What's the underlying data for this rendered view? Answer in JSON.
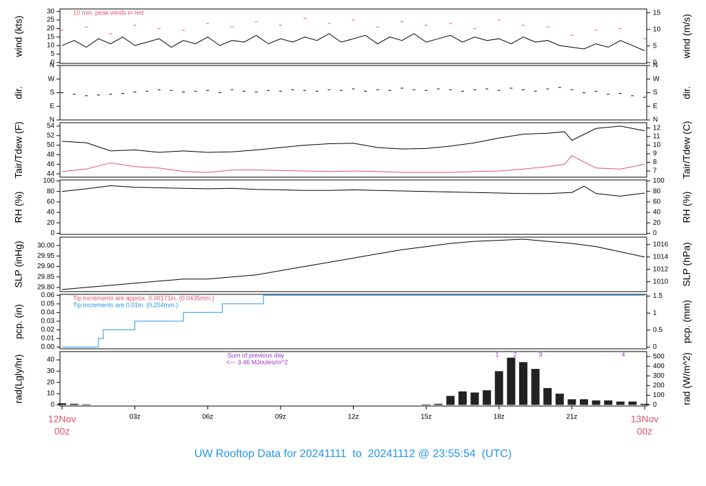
{
  "chart_data": [
    {
      "type": "line",
      "ylabel": "wind (kts)",
      "y2label": "wind (m/s)",
      "ylim": [
        -0.5,
        31.5
      ],
      "yticks": [
        0,
        5,
        10,
        15,
        20,
        25,
        30
      ],
      "y2lim": [
        -0.26,
        16.2
      ],
      "y2ticks": [
        0,
        5,
        10,
        15
      ],
      "annotations": [
        {
          "text": "10 min. peak winds in red",
          "color": "#df536b"
        }
      ],
      "series": [
        {
          "name": "wind",
          "color": "#000000",
          "x": [
            0,
            0.5,
            1,
            1.5,
            2,
            2.5,
            3,
            3.5,
            4,
            4.5,
            5,
            5.5,
            6,
            6.5,
            7,
            7.5,
            8,
            8.5,
            9,
            9.5,
            10,
            10.5,
            11,
            11.5,
            12,
            12.5,
            13,
            13.5,
            14,
            14.5,
            15,
            15.5,
            16,
            16.5,
            17,
            17.5,
            18,
            18.5,
            19,
            19.5,
            20,
            20.5,
            21,
            21.5,
            22,
            22.5,
            23,
            23.5,
            24
          ],
          "values": [
            10,
            13,
            9,
            14,
            11,
            15,
            10,
            12,
            14,
            9,
            13,
            11,
            15,
            10,
            13,
            12,
            16,
            11,
            14,
            12,
            15,
            13,
            17,
            12,
            14,
            16,
            11,
            15,
            13,
            17,
            12,
            14,
            16,
            12,
            15,
            13,
            14,
            11,
            15,
            12,
            13,
            10,
            9,
            8,
            11,
            9,
            13,
            10,
            7
          ]
        },
        {
          "name": "peak",
          "type": "scatter",
          "color": "#df536b",
          "x": [
            0,
            1,
            2,
            3,
            4,
            5,
            6,
            7,
            8,
            9,
            10,
            11,
            12,
            13,
            14,
            15,
            16,
            17,
            18,
            19,
            20,
            21,
            22,
            23,
            24
          ],
          "values": [
            19,
            21,
            17,
            22,
            20,
            19,
            23,
            21,
            24,
            22,
            26,
            23,
            25,
            21,
            24,
            22,
            23,
            20,
            25,
            22,
            21,
            16,
            19,
            20,
            14
          ]
        }
      ]
    },
    {
      "type": "scatter",
      "ylabel": "dir.",
      "y2label": "dir.",
      "ylim": [
        0,
        360
      ],
      "y2lim": [
        0,
        360
      ],
      "yticks": [
        {
          "value": 0,
          "label": "N"
        },
        {
          "value": 90,
          "label": "E"
        },
        {
          "value": 180,
          "label": "S"
        },
        {
          "value": 270,
          "label": "W"
        },
        {
          "value": 360,
          "label": "N"
        }
      ],
      "y2ticks": [
        {
          "value": 0,
          "label": "N"
        },
        {
          "value": 90,
          "label": "E"
        },
        {
          "value": 180,
          "label": "S"
        },
        {
          "value": 270,
          "label": "W"
        },
        {
          "value": 360,
          "label": "N"
        }
      ],
      "series": [
        {
          "name": "dir",
          "color": "#000000",
          "x": [
            0,
            0.5,
            1,
            1.5,
            2,
            2.5,
            3,
            3.5,
            4,
            4.5,
            5,
            5.5,
            6,
            6.5,
            7,
            7.5,
            8,
            8.5,
            9,
            9.5,
            10,
            10.5,
            11,
            11.5,
            12,
            12.5,
            13,
            13.5,
            14,
            14.5,
            15,
            15.5,
            16,
            16.5,
            17,
            17.5,
            18,
            18.5,
            19,
            19.5,
            20,
            20.5,
            21,
            21.5,
            22,
            22.5,
            23,
            23.5,
            24
          ],
          "values": [
            180,
            170,
            160,
            165,
            170,
            175,
            185,
            190,
            200,
            195,
            185,
            190,
            195,
            180,
            200,
            190,
            185,
            195,
            190,
            200,
            195,
            190,
            200,
            195,
            205,
            190,
            200,
            195,
            210,
            200,
            195,
            205,
            200,
            190,
            200,
            205,
            195,
            210,
            200,
            190,
            205,
            215,
            200,
            180,
            190,
            170,
            175,
            160,
            150
          ]
        }
      ]
    },
    {
      "type": "line",
      "ylabel": "Tair/Tdew (F)",
      "y2label": "Tair/Tdew (C)",
      "ylim": [
        43.3,
        54.7
      ],
      "yticks": [
        44,
        46,
        48,
        50,
        52,
        54
      ],
      "y2lim": [
        6.28,
        12.61
      ],
      "y2ticks": [
        7,
        8,
        9,
        10,
        11,
        12
      ],
      "series": [
        {
          "name": "Tair",
          "color": "#000000",
          "x": [
            0,
            1,
            2,
            3,
            4,
            5,
            6,
            7,
            8,
            9,
            10,
            11,
            12,
            13,
            14,
            15,
            16,
            17,
            18,
            19,
            20,
            20.7,
            21,
            22,
            23,
            24
          ],
          "values": [
            50.8,
            50.5,
            48.8,
            49,
            48.5,
            48.8,
            48.5,
            48.6,
            49,
            49.5,
            50,
            50.3,
            50.4,
            49.5,
            49.2,
            49.3,
            49.8,
            50.5,
            51.5,
            52.3,
            52.5,
            52.8,
            51,
            53.5,
            54,
            53
          ]
        },
        {
          "name": "Tdew",
          "color": "#df536b",
          "x": [
            0,
            1,
            2,
            3,
            4,
            5,
            6,
            7,
            8,
            9,
            10,
            11,
            12,
            13,
            14,
            15,
            16,
            17,
            18,
            19,
            20,
            20.7,
            21,
            22,
            23,
            24
          ],
          "values": [
            44.5,
            45,
            46.3,
            45.5,
            45.2,
            44.5,
            44.3,
            44.8,
            44.8,
            44.7,
            44.6,
            44.5,
            44.6,
            44.5,
            44.3,
            44.3,
            44.3,
            44.5,
            44.6,
            45,
            45.5,
            46,
            47.8,
            45.2,
            45,
            46
          ]
        }
      ]
    },
    {
      "type": "line",
      "ylabel": "RH (%)",
      "y2label": "RH (%)",
      "ylim": [
        -2,
        102
      ],
      "yticks": [
        0,
        20,
        40,
        60,
        80,
        100
      ],
      "y2lim": [
        -2,
        102
      ],
      "y2ticks": [
        0,
        20,
        40,
        60,
        80,
        100
      ],
      "series": [
        {
          "name": "RH",
          "color": "#000000",
          "x": [
            0,
            1,
            2,
            3,
            4,
            5,
            6,
            7,
            8,
            9,
            10,
            11,
            12,
            13,
            14,
            15,
            16,
            17,
            18,
            19,
            20,
            21,
            21.5,
            22,
            23,
            24
          ],
          "values": [
            80,
            85,
            91,
            88,
            87,
            86,
            85,
            86,
            84,
            83,
            82,
            82,
            83,
            82,
            81,
            80,
            79,
            78,
            77,
            76,
            76,
            78,
            90,
            76,
            71,
            77
          ]
        }
      ]
    },
    {
      "type": "line",
      "ylabel": "SLP (inHg)",
      "y2label": "SLP (hPa)",
      "ylim": [
        29.78,
        30.04
      ],
      "y2lim": [
        1008.4,
        1017.2
      ],
      "yticks": [
        {
          "value": 29.8,
          "label": "29.80"
        },
        {
          "value": 29.85,
          "label": "29.85"
        },
        {
          "value": 29.9,
          "label": "29.90"
        },
        {
          "value": 29.95,
          "label": "29.95"
        },
        {
          "value": 30,
          "label": "30.00"
        }
      ],
      "y2ticks": [
        1010,
        1012,
        1014,
        1016
      ],
      "series": [
        {
          "name": "SLP",
          "color": "#000000",
          "x": [
            0,
            1,
            2,
            3,
            4,
            5,
            6,
            7,
            8,
            9,
            10,
            11,
            12,
            13,
            14,
            15,
            16,
            17,
            18,
            19,
            20,
            21,
            22,
            23,
            24
          ],
          "values": [
            29.79,
            29.8,
            29.81,
            29.82,
            29.83,
            29.84,
            29.84,
            29.85,
            29.86,
            29.88,
            29.9,
            29.92,
            29.94,
            29.96,
            29.98,
            29.995,
            30.01,
            30.02,
            30.025,
            30.03,
            30.02,
            30.01,
            29.995,
            29.97,
            29.945
          ]
        }
      ]
    },
    {
      "type": "step",
      "ylabel": "pcp. (in)",
      "y2label": "pcp. (mm)",
      "ylim": [
        -0.002,
        0.061
      ],
      "y2lim": [
        -0.05,
        1.55
      ],
      "yticks": [
        {
          "value": 0,
          "label": "0.00"
        },
        {
          "value": 0.01,
          "label": "0.01"
        },
        {
          "value": 0.02,
          "label": "0.02"
        },
        {
          "value": 0.03,
          "label": "0.03"
        },
        {
          "value": 0.04,
          "label": "0.04"
        },
        {
          "value": 0.05,
          "label": "0.05"
        },
        {
          "value": 0.06,
          "label": "0.06"
        }
      ],
      "y2ticks": [
        0,
        0.5,
        1,
        1.5
      ],
      "annotations": [
        {
          "text": "Tip increments are approx. 0.00171in. (0.0435mm.)",
          "color": "#df536b"
        },
        {
          "text": "Tip increments are 0.01in. (0.254mm.)",
          "color": "#2297e6"
        }
      ],
      "series": [
        {
          "name": "pcp",
          "color": "#2297e6",
          "x": [
            0,
            1.5,
            1.7,
            3,
            5,
            6.6,
            8.3,
            24
          ],
          "values": [
            0,
            0.01,
            0.02,
            0.03,
            0.04,
            0.05,
            0.06,
            0.06
          ]
        }
      ]
    },
    {
      "type": "bar",
      "ylabel": "rad(Lgly/hr)",
      "y2label": "rad (W/m^2)",
      "ylim": [
        -1,
        47.4
      ],
      "yticks": [
        0,
        10,
        20,
        30,
        40
      ],
      "y2lim": [
        -11.6,
        551
      ],
      "y2ticks": [
        0,
        100,
        200,
        300,
        400,
        500
      ],
      "annotations": [
        {
          "text": "Sum of previous day",
          "color": "#9b30d0"
        },
        {
          "text": "<--- 3.46 MJoules/m^2",
          "color": "#9b30d0"
        }
      ],
      "peak_labels": [
        "1",
        "2",
        "3",
        "4"
      ],
      "series": [
        {
          "name": "rad",
          "color": "#222222",
          "x": [
            0,
            0.5,
            1,
            1.5,
            2,
            2.5,
            3,
            3.5,
            4,
            4.5,
            5,
            5.5,
            6,
            6.5,
            7,
            7.5,
            8,
            8.5,
            9,
            9.5,
            10,
            10.5,
            11,
            11.5,
            12,
            12.5,
            13,
            13.5,
            14,
            14.5,
            15,
            15.5,
            16,
            16.5,
            17,
            17.5,
            18,
            18.5,
            19,
            19.5,
            20,
            20.5,
            21,
            21.5,
            22,
            22.5,
            23,
            23.5,
            24
          ],
          "values": [
            1.5,
            1,
            0.5,
            0,
            0,
            0,
            0,
            0,
            0,
            0,
            0,
            0,
            0,
            0,
            0,
            0,
            0,
            0,
            0,
            0,
            0,
            0,
            0,
            0,
            0,
            0,
            0,
            0,
            0,
            0,
            0.5,
            1,
            8,
            12,
            11,
            13,
            30,
            42,
            38,
            32,
            15,
            10,
            5,
            5,
            4,
            4,
            3,
            3,
            1
          ]
        }
      ]
    }
  ],
  "x_axis": {
    "xlim": [
      0,
      24
    ],
    "xticks": [
      {
        "value": 0,
        "label": "00z"
      },
      {
        "value": 3,
        "label": "03z"
      },
      {
        "value": 6,
        "label": "06z"
      },
      {
        "value": 9,
        "label": "09z"
      },
      {
        "value": 12,
        "label": "12z"
      },
      {
        "value": 15,
        "label": "15z"
      },
      {
        "value": 18,
        "label": "18z"
      },
      {
        "value": 21,
        "label": "21z"
      },
      {
        "value": 24,
        "label": "00z"
      }
    ],
    "date_labels": [
      {
        "value": 0,
        "label": "12Nov"
      },
      {
        "value": 24,
        "label": "13Nov"
      }
    ]
  },
  "footer": "UW Rooftop Data for 20241111  to  20241112 @ 23:55:54  (UTC)"
}
